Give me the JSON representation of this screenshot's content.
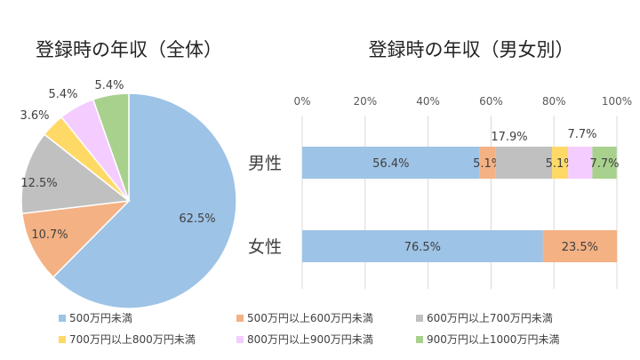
{
  "colors": [
    "#9dc3e6",
    "#f4b183",
    "#c0c0c0",
    "#ffd966",
    "#f5ccff",
    "#a9d18e"
  ],
  "legend": [
    "500万円未満",
    "500万円以上600万円未満",
    "600万円以上700万円未満",
    "700万円以上800万円未満",
    "800万円以上900万円未満",
    "900万円以上1000万円未満"
  ],
  "chart_data": [
    {
      "type": "pie",
      "title": "登録時の年収（全体）",
      "categories": [
        "500万円未満",
        "500万円以上600万円未満",
        "600万円以上700万円未満",
        "700万円以上800万円未満",
        "800万円以上900万円未満",
        "900万円以上1000万円未満"
      ],
      "values": [
        62.5,
        10.7,
        12.5,
        3.6,
        5.4,
        5.4
      ],
      "labels": [
        "62.5%",
        "10.7%",
        "12.5%",
        "3.6%",
        "5.4%",
        "5.4%"
      ]
    },
    {
      "type": "bar",
      "orientation": "horizontal",
      "stacked": true,
      "title": "登録時の年収（男女別）",
      "categories": [
        "男性",
        "女性"
      ],
      "xlim": [
        0,
        100
      ],
      "xticks": [
        "0%",
        "20%",
        "40%",
        "60%",
        "80%",
        "100%"
      ],
      "grid": true,
      "series": [
        {
          "name": "500万円未満",
          "values": [
            56.4,
            76.5
          ],
          "labels": [
            "56.4%",
            "76.5%"
          ]
        },
        {
          "name": "500万円以上600万円未満",
          "values": [
            5.1,
            23.5
          ],
          "labels": [
            "5.1%",
            "23.5%"
          ]
        },
        {
          "name": "600万円以上700万円未満",
          "values": [
            17.9,
            0
          ],
          "labels": [
            "17.9%",
            ""
          ]
        },
        {
          "name": "700万円以上800万円未満",
          "values": [
            5.1,
            0
          ],
          "labels": [
            "5.1%",
            ""
          ]
        },
        {
          "name": "800万円以上900万円未満",
          "values": [
            7.7,
            0
          ],
          "labels": [
            "7.7%",
            ""
          ]
        },
        {
          "name": "900万円以上1000万円未満",
          "values": [
            7.7,
            0
          ],
          "labels": [
            "7.7%",
            ""
          ]
        }
      ]
    }
  ]
}
